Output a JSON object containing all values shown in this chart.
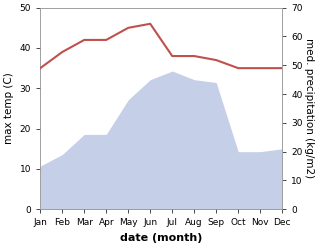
{
  "months": [
    "Jan",
    "Feb",
    "Mar",
    "Apr",
    "May",
    "Jun",
    "Jul",
    "Aug",
    "Sep",
    "Oct",
    "Nov",
    "Dec"
  ],
  "month_x": [
    0,
    1,
    2,
    3,
    4,
    5,
    6,
    7,
    8,
    9,
    10,
    11
  ],
  "temperature": [
    35,
    39,
    42,
    42,
    45,
    46,
    38,
    38,
    37,
    35,
    35,
    35
  ],
  "precipitation": [
    15,
    19,
    26,
    26,
    38,
    45,
    48,
    45,
    44,
    20,
    20,
    21
  ],
  "temp_color": "#c0504d",
  "precip_fill_color": "#c5d0e8",
  "precip_line_color": "#a0b0d0",
  "left_ylim": [
    0,
    50
  ],
  "right_ylim": [
    0,
    70
  ],
  "left_yticks": [
    0,
    10,
    20,
    30,
    40,
    50
  ],
  "right_yticks": [
    0,
    10,
    20,
    30,
    40,
    50,
    60,
    70
  ],
  "xlabel": "date (month)",
  "ylabel_left": "max temp (C)",
  "ylabel_right": "med. precipitation (kg/m2)",
  "background_color": "#ffffff",
  "temp_linewidth": 1.5,
  "tick_labelsize": 6.5,
  "xlabel_fontsize": 8,
  "ylabel_fontsize": 7.5
}
